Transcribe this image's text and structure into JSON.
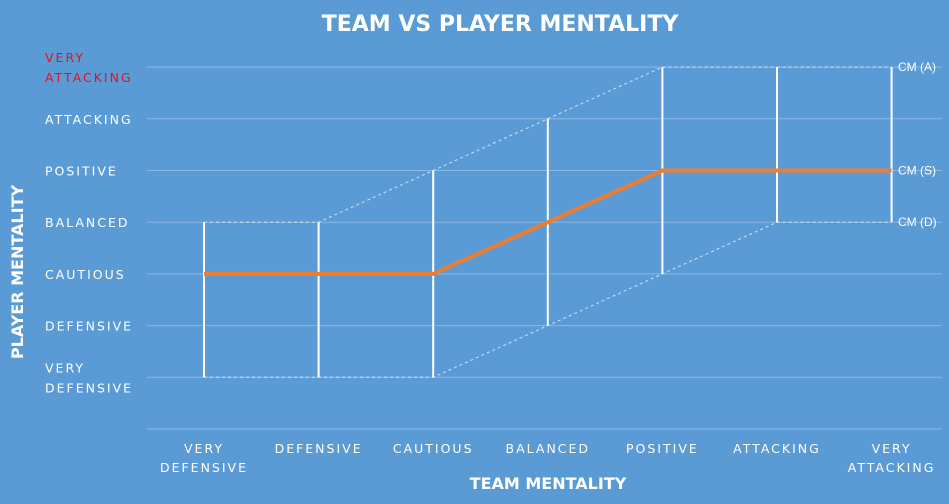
{
  "chart_data": {
    "type": "line",
    "title": "TEAM VS PLAYER MENTALITY",
    "xlabel": "TEAM MENTALITY",
    "ylabel": "PLAYER MENTALITY",
    "categories": [
      "VERY DEFENSIVE",
      "DEFENSIVE",
      "CAUTIOUS",
      "BALANCED",
      "POSITIVE",
      "ATTACKING",
      "VERY ATTACKING"
    ],
    "y_levels": [
      "VERY DEFENSIVE",
      "DEFENSIVE",
      "CAUTIOUS",
      "BALANCED",
      "POSITIVE",
      "ATTACKING",
      "VERY ATTACKING"
    ],
    "highlight_y_level": "VERY ATTACKING",
    "highlight_color": "#e8101a",
    "series_color": "#ed7d31",
    "series": [
      {
        "name": "CM (S)",
        "values": [
          3,
          3,
          3,
          4,
          5,
          5,
          5
        ]
      }
    ],
    "range_low": [
      1,
      1,
      1,
      2,
      3,
      4,
      4
    ],
    "range_high": [
      4,
      4,
      5,
      6,
      7,
      7,
      7
    ],
    "end_labels": [
      {
        "text": "CM (A)",
        "level": 7
      },
      {
        "text": "CM (S)",
        "level": 5
      },
      {
        "text": "CM (D)",
        "level": 4
      }
    ],
    "ylim": [
      0,
      7
    ],
    "grid": true
  }
}
